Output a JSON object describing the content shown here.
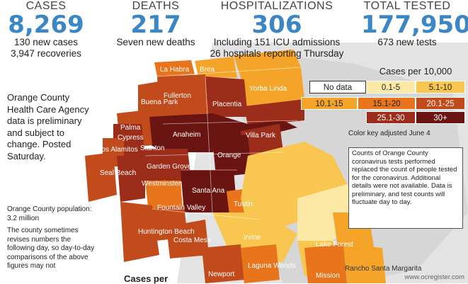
{
  "stats": {
    "cases": {
      "label": "CASES",
      "value": "8,269",
      "sub1": "130 new cases",
      "sub2": "3,947 recoveries"
    },
    "deaths": {
      "label": "DEATHS",
      "value": "217",
      "sub1": "Seven new deaths"
    },
    "hospitalizations": {
      "label": "HOSPITALIZATIONS",
      "value": "306",
      "sub1": "Including 151 ICU admissions",
      "sub2": "26 hospitals reporting Thursday"
    },
    "tested": {
      "label": "TOTAL TESTED",
      "value": "177,950",
      "sub1": "673 new tests"
    }
  },
  "notes": {
    "agency": "Orange County Health Care Agency data is preliminary and subject to change. Posted Saturday.",
    "population": "Orange County population: 3.2 million",
    "revise": "The county sometimes revises numbers the following day, so day-to-day comparisons of the above figures may not"
  },
  "legend": {
    "title": "Cases per 10,000",
    "items": [
      {
        "label": "No data",
        "color": "#ffffff"
      },
      {
        "label": "0.1-5",
        "color": "#fde9a6"
      },
      {
        "label": "5.1-10",
        "color": "#f9c64f"
      },
      {
        "label": "10.1-15",
        "color": "#f4a529"
      },
      {
        "label": "15.1-20",
        "color": "#e8741c"
      },
      {
        "label": "20.1-25",
        "color": "#c24b1c"
      },
      {
        "label": "25.1-30",
        "color": "#9b2d1a"
      },
      {
        "label": "30+",
        "color": "#6b1512"
      }
    ],
    "color_key_note": "Color key adjusted June 4"
  },
  "info_box": "Counts of Orange County coronavirus tests performed replaced the count of people tested for the coronavirus. Additional details were not available. Data is preliminary, and test counts will fluctuate day to day.",
  "map_labels": [
    "La Habra",
    "Brea",
    "Fullerton",
    "Yorba Linda",
    "Placentia",
    "Buena Park",
    "Anaheim",
    "Palma",
    "Cypress",
    "Stanton",
    "Los Alamitos",
    "Villa Park",
    "Orange",
    "Garden Grove",
    "Seal Beach",
    "Westminster",
    "Santa Ana",
    "Tustin",
    "Fountain Valley",
    "Huntington Beach",
    "Costa Mesa",
    "Irvine",
    "Lake Forest",
    "Laguna Woods",
    "Newport",
    "Mission",
    "Rancho Santa Margarita"
  ],
  "bottom_title": "Cases per",
  "watermark": "www.ocregister.com"
}
